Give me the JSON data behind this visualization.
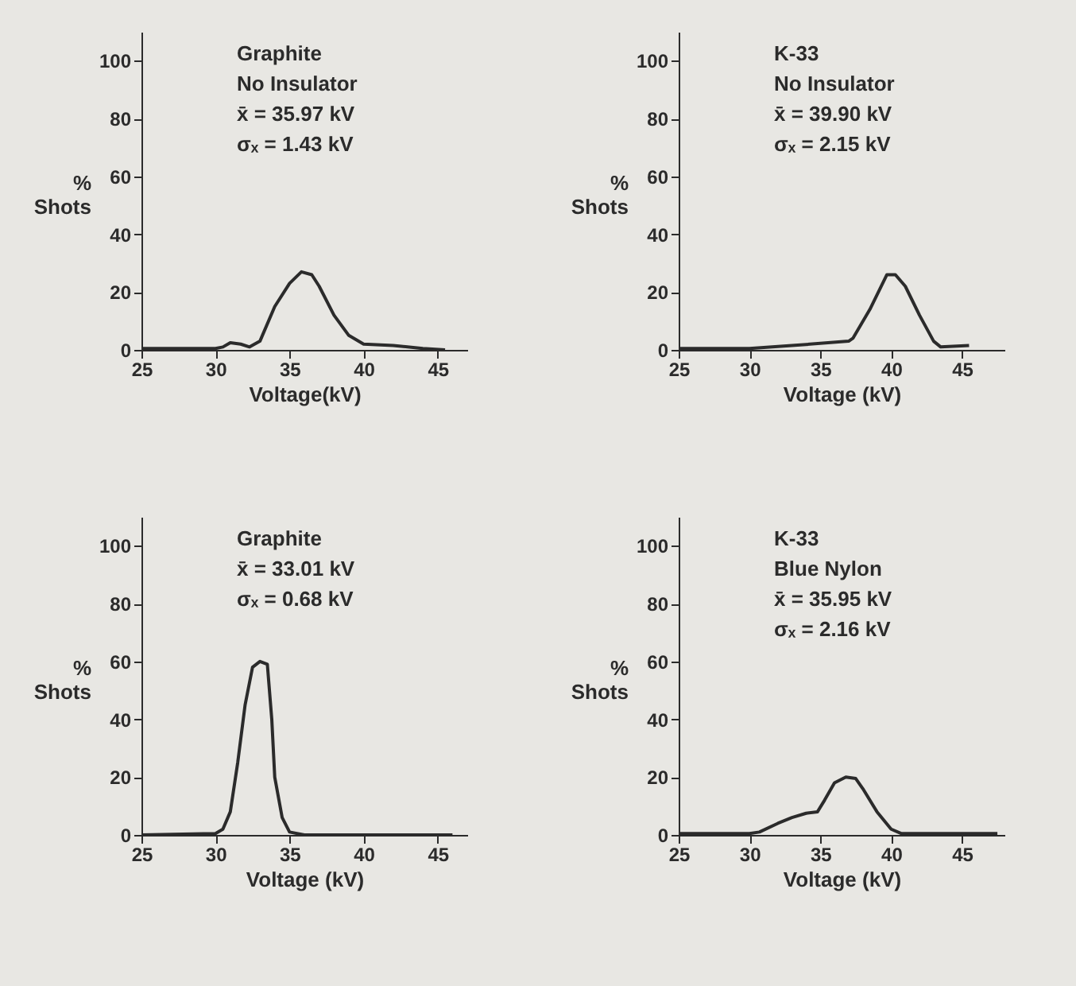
{
  "chart_data": [
    {
      "type": "line",
      "xlabel": "Voltage(kV)",
      "ylabel": "% Shots",
      "annotations": [
        "Graphite",
        "No Insulator",
        "x̄ = 35.97 kV",
        "σₓ = 1.43 kV"
      ],
      "xlim": [
        25,
        47
      ],
      "ylim": [
        0,
        110
      ],
      "xticks": [
        25,
        30,
        35,
        40,
        45
      ],
      "yticks": [
        0,
        20,
        40,
        60,
        80,
        100
      ],
      "series": [
        {
          "color": "#2b2b2b",
          "x": [
            25,
            30,
            30.5,
            31,
            31.7,
            32.3,
            33,
            34,
            35,
            35.8,
            36.5,
            37,
            38,
            39,
            40,
            42,
            44,
            45.5
          ],
          "values": [
            0.5,
            0.5,
            1,
            2.5,
            2,
            1,
            3,
            15,
            23,
            27,
            26,
            22,
            12,
            5,
            2,
            1.5,
            0.5,
            0
          ]
        }
      ]
    },
    {
      "type": "line",
      "xlabel": "Voltage (kV)",
      "ylabel": "% Shots",
      "annotations": [
        "K-33",
        "No Insulator",
        "x̄ = 39.90 kV",
        "σₓ = 2.15 kV"
      ],
      "xlim": [
        25,
        48
      ],
      "ylim": [
        0,
        110
      ],
      "xticks": [
        25,
        30,
        35,
        40,
        45
      ],
      "yticks": [
        0,
        20,
        40,
        60,
        80,
        100
      ],
      "series": [
        {
          "color": "#2b2b2b",
          "x": [
            25,
            30,
            33,
            37,
            37.3,
            38.5,
            39.7,
            40.3,
            41,
            42,
            43,
            43.5,
            45.5
          ],
          "values": [
            0.5,
            0.5,
            1.5,
            3,
            4,
            14,
            26,
            26,
            22,
            12,
            3,
            1,
            1.5
          ]
        }
      ]
    },
    {
      "type": "line",
      "xlabel": "Voltage (kV)",
      "ylabel": "% Shots",
      "annotations": [
        "Graphite",
        "x̄ = 33.01 kV",
        "σₓ = 0.68 kV"
      ],
      "xlim": [
        25,
        47
      ],
      "ylim": [
        0,
        110
      ],
      "xticks": [
        25,
        30,
        35,
        40,
        45
      ],
      "yticks": [
        0,
        20,
        40,
        60,
        80,
        100
      ],
      "series": [
        {
          "color": "#2b2b2b",
          "x": [
            25,
            30,
            30.5,
            31,
            31.5,
            32,
            32.5,
            33,
            33.5,
            33.8,
            34,
            34.5,
            35,
            36,
            46
          ],
          "values": [
            0,
            0.5,
            2,
            8,
            25,
            45,
            58,
            60,
            59,
            40,
            20,
            6,
            1,
            0,
            0
          ]
        }
      ]
    },
    {
      "type": "line",
      "xlabel": "Voltage (kV)",
      "ylabel": "% Shots",
      "annotations": [
        "K-33",
        "Blue Nylon",
        "x̄ = 35.95 kV",
        "σₓ = 2.16 kV"
      ],
      "xlim": [
        25,
        48
      ],
      "ylim": [
        0,
        110
      ],
      "xticks": [
        25,
        30,
        35,
        40,
        45
      ],
      "yticks": [
        0,
        20,
        40,
        60,
        80,
        100
      ],
      "series": [
        {
          "color": "#2b2b2b",
          "x": [
            25,
            30,
            30.7,
            32,
            33,
            34,
            34.8,
            35.3,
            36,
            36.8,
            37.5,
            38,
            39,
            40,
            40.7,
            47.5
          ],
          "values": [
            0.5,
            0.5,
            1,
            4,
            6,
            7.5,
            8,
            12,
            18,
            20,
            19.5,
            16,
            8,
            2,
            0.5,
            0.5
          ]
        }
      ]
    }
  ]
}
